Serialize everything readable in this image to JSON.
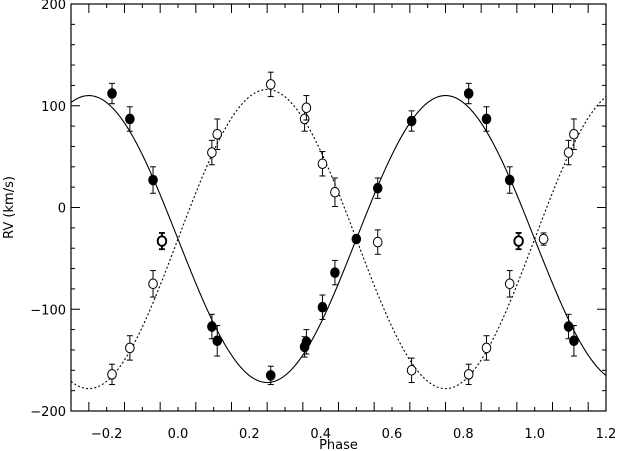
{
  "chart_data": {
    "type": "scatter",
    "xlabel": "Phase",
    "ylabel": "RV (km/s)",
    "xlim": [
      -0.3,
      1.2
    ],
    "ylim": [
      -200,
      200
    ],
    "xticks": [
      -0.2,
      0.0,
      0.2,
      0.4,
      0.6,
      0.8,
      1.0,
      1.2
    ],
    "xtick_labels": [
      "−0.2",
      "0.0",
      "0.2",
      "0.4",
      "0.6",
      "0.8",
      "1.0",
      "1.2"
    ],
    "yticks": [
      -200,
      -100,
      0,
      100,
      200
    ],
    "ytick_labels": [
      "−200",
      "−100",
      "0",
      "100",
      "200"
    ],
    "grid": false,
    "series": [
      {
        "marker": "filled-circle",
        "points": [
          {
            "x": -0.185,
            "y": 112,
            "err": 10
          },
          {
            "x": -0.135,
            "y": 87,
            "err": 12
          },
          {
            "x": -0.07,
            "y": 27,
            "err": 13
          },
          {
            "x": 0.095,
            "y": -117,
            "err": 12
          },
          {
            "x": 0.11,
            "y": -131,
            "err": 15
          },
          {
            "x": 0.26,
            "y": -165,
            "err": 9
          },
          {
            "x": 0.355,
            "y": -137,
            "err": 10
          },
          {
            "x": 0.36,
            "y": -132,
            "err": 12
          },
          {
            "x": 0.405,
            "y": -98,
            "err": 12
          },
          {
            "x": 0.44,
            "y": -64,
            "err": 12
          },
          {
            "x": 0.5,
            "y": -31,
            "err": 0
          },
          {
            "x": 0.56,
            "y": 19,
            "err": 10
          },
          {
            "x": 0.655,
            "y": 85,
            "err": 10
          },
          {
            "x": 0.815,
            "y": 112,
            "err": 10
          },
          {
            "x": 0.865,
            "y": 87,
            "err": 12
          },
          {
            "x": 0.93,
            "y": 27,
            "err": 13
          },
          {
            "x": 1.095,
            "y": -117,
            "err": 12
          },
          {
            "x": 1.11,
            "y": -131,
            "err": 15
          }
        ]
      },
      {
        "marker": "open-circle",
        "points": [
          {
            "x": -0.185,
            "y": -164,
            "err": 10
          },
          {
            "x": -0.135,
            "y": -138,
            "err": 12
          },
          {
            "x": -0.07,
            "y": -75,
            "err": 13
          },
          {
            "x": 0.095,
            "y": 54,
            "err": 12
          },
          {
            "x": 0.11,
            "y": 72,
            "err": 15
          },
          {
            "x": 0.26,
            "y": 121,
            "err": 12
          },
          {
            "x": 0.355,
            "y": 87,
            "err": 12
          },
          {
            "x": 0.36,
            "y": 98,
            "err": 12
          },
          {
            "x": 0.405,
            "y": 43,
            "err": 12
          },
          {
            "x": 0.44,
            "y": 15,
            "err": 14
          },
          {
            "x": 0.56,
            "y": -34,
            "err": 12
          },
          {
            "x": 0.655,
            "y": -160,
            "err": 12
          },
          {
            "x": 0.815,
            "y": -164,
            "err": 10
          },
          {
            "x": 0.865,
            "y": -138,
            "err": 12
          },
          {
            "x": 0.93,
            "y": -75,
            "err": 13
          },
          {
            "x": 1.095,
            "y": 54,
            "err": 12
          },
          {
            "x": 1.11,
            "y": 72,
            "err": 15
          },
          {
            "x": 1.025,
            "y": -31,
            "err": 6
          }
        ]
      },
      {
        "marker": "bold-open-circle",
        "points": [
          {
            "x": -0.045,
            "y": -33,
            "err": 8
          },
          {
            "x": 0.955,
            "y": -33,
            "err": 8
          }
        ]
      }
    ],
    "curves": [
      {
        "style": "solid",
        "gamma": -31,
        "amplitude": 141,
        "phase_of_max": 0.75
      },
      {
        "style": "dotted",
        "gamma": -31,
        "amplitude": 147,
        "phase_of_max": 0.25
      }
    ]
  }
}
